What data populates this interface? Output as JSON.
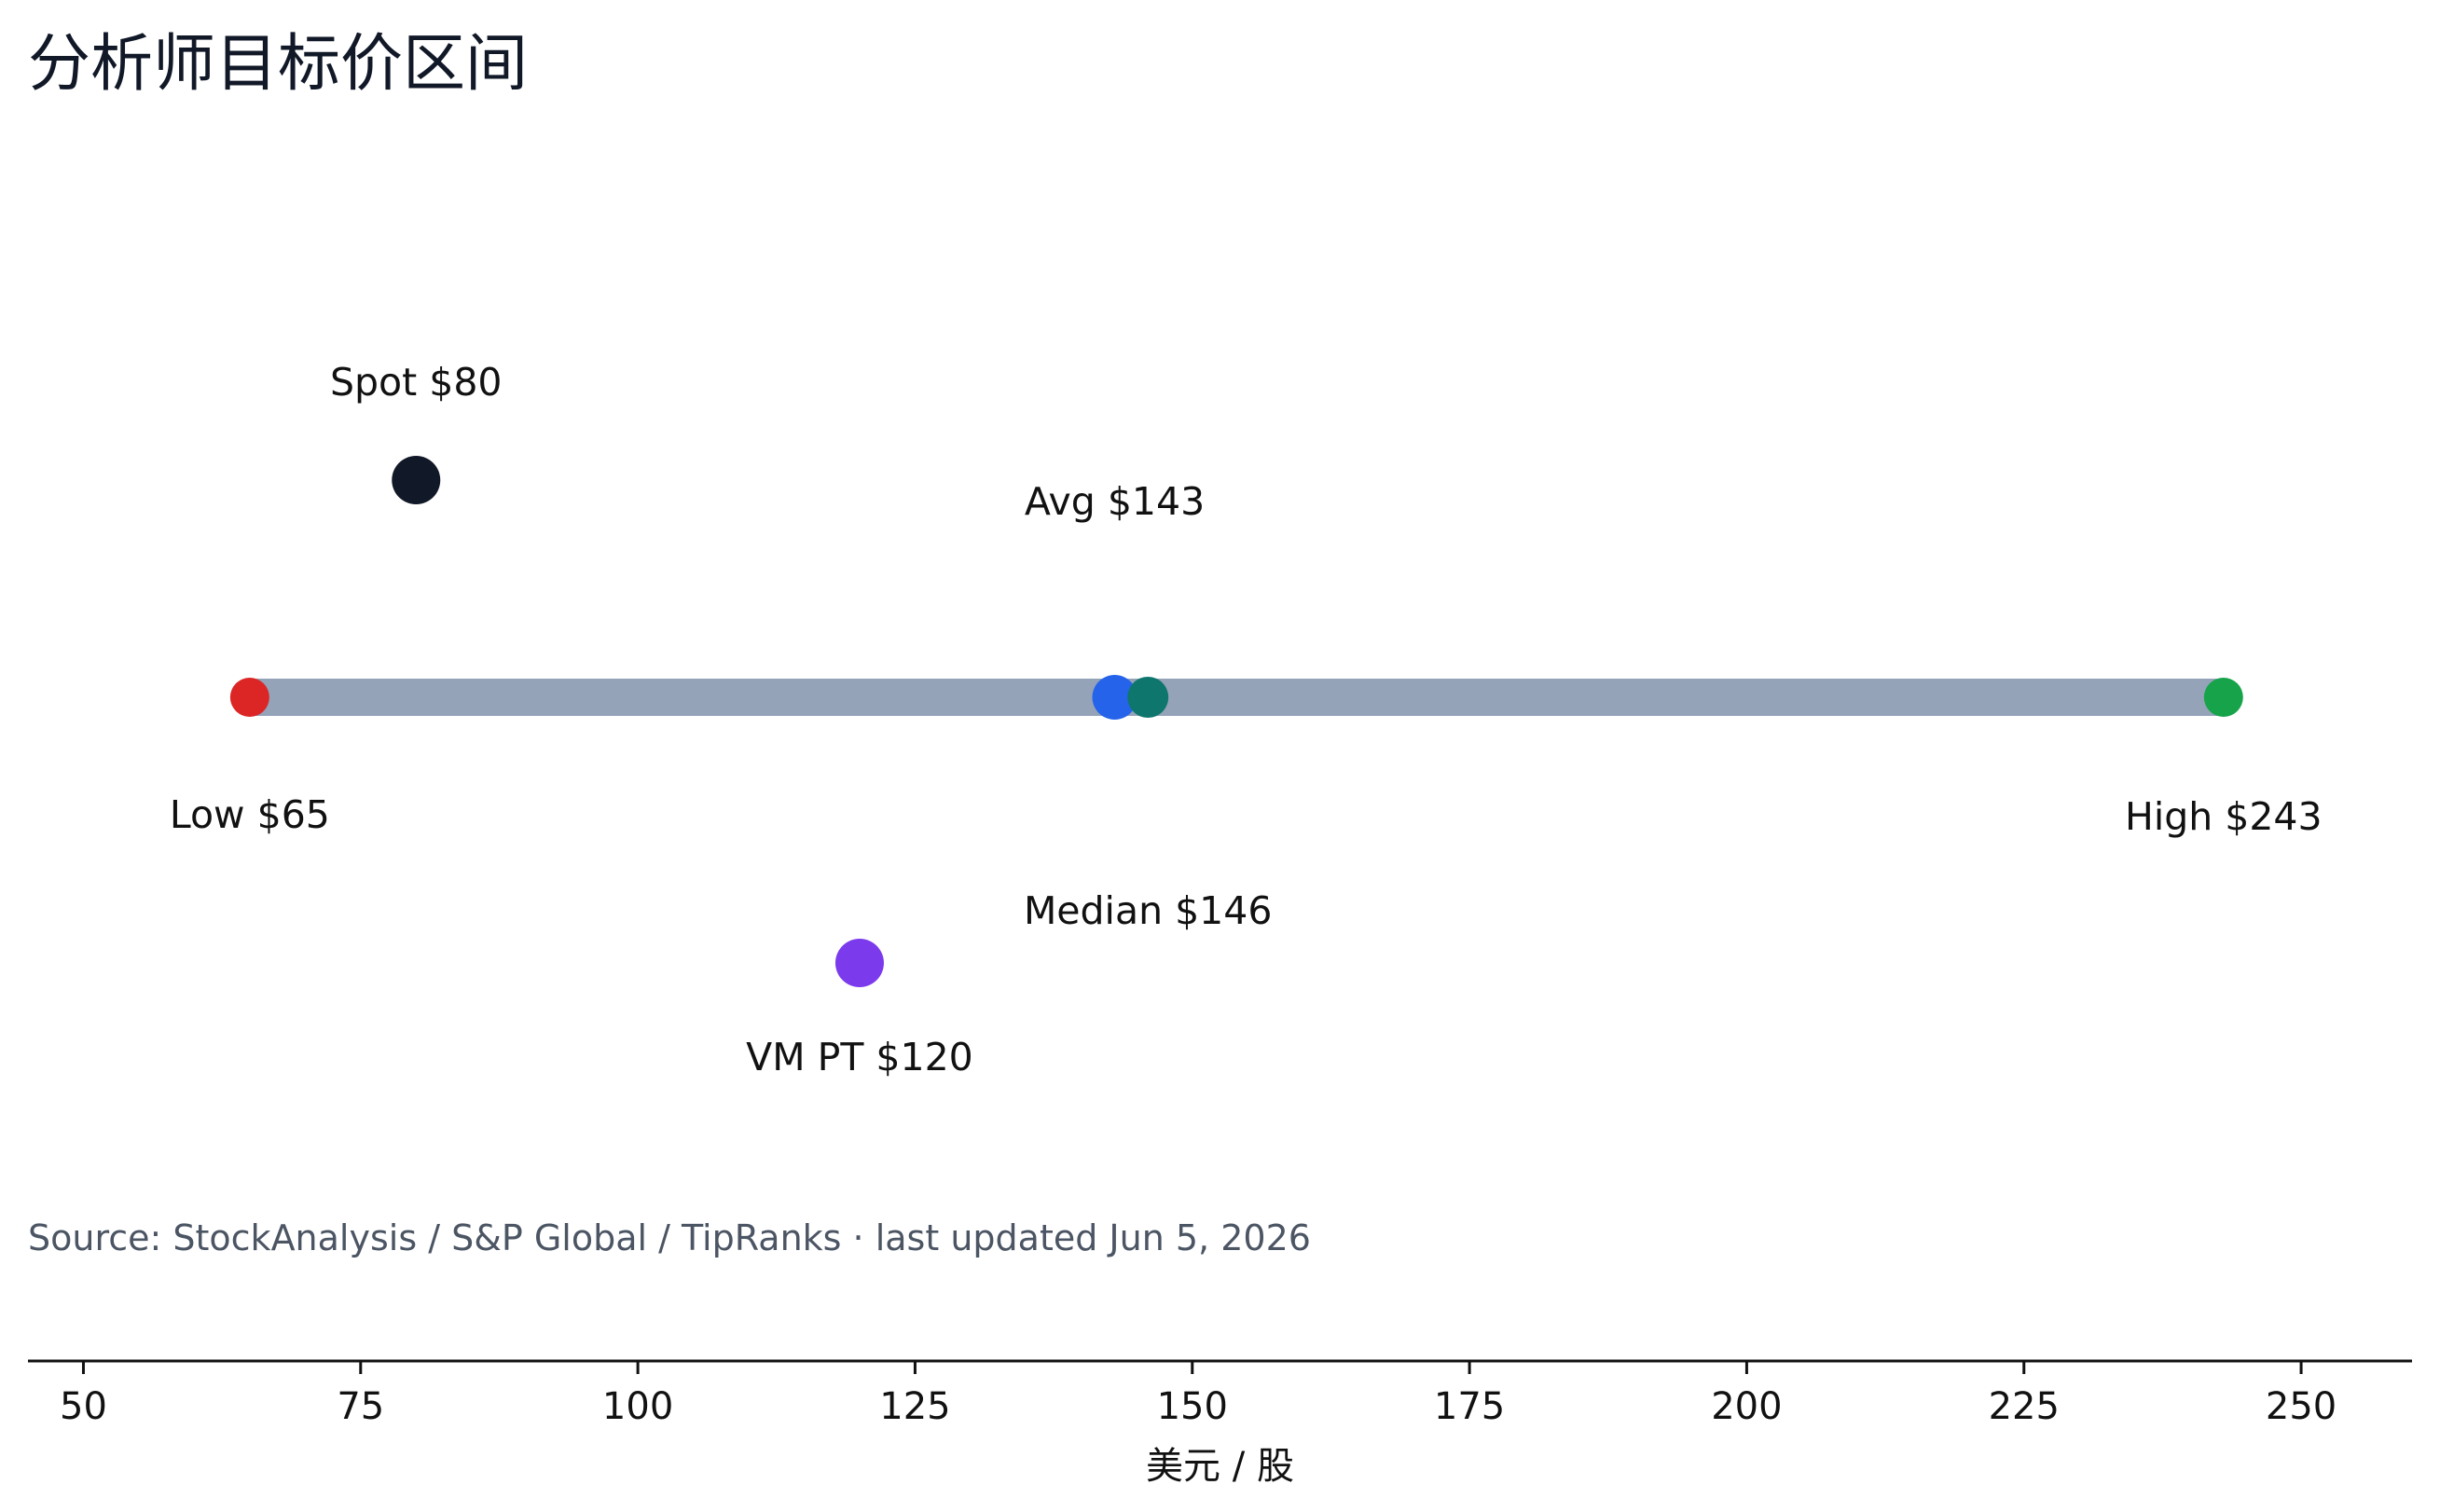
{
  "chart_data": {
    "type": "scatter",
    "title": "分析师目标价区间",
    "source": "Source: StockAnalysis / S&P Global / TipRanks · last updated Jun 5, 2026",
    "xlabel": "美元 / 股",
    "xlim": [
      45,
      260
    ],
    "xticks": [
      50,
      75,
      100,
      125,
      150,
      175,
      200,
      225,
      250
    ],
    "range": {
      "low": 65,
      "high": 243,
      "color": "#94a3b8"
    },
    "points": [
      {
        "key": "low",
        "x": 65,
        "label": "Low $65",
        "color": "#dc2626",
        "row": "range",
        "label_pos": "below"
      },
      {
        "key": "high",
        "x": 243,
        "label": "High $243",
        "color": "#16a34a",
        "row": "range",
        "label_pos": "below"
      },
      {
        "key": "avg",
        "x": 143,
        "label": "Avg $143",
        "color": "#2563eb",
        "row": "range",
        "label_pos": "above"
      },
      {
        "key": "median",
        "x": 146,
        "label": "Median $146",
        "color": "#0f766e",
        "row": "range",
        "label_pos": "below"
      },
      {
        "key": "spot",
        "x": 80,
        "label": "Spot $80",
        "color": "#111827",
        "row": "upper",
        "label_pos": "above"
      },
      {
        "key": "vm_pt",
        "x": 120,
        "label": "VM PT $120",
        "color": "#7c3aed",
        "row": "lower",
        "label_pos": "below"
      }
    ],
    "grid": false,
    "legend": "none"
  }
}
